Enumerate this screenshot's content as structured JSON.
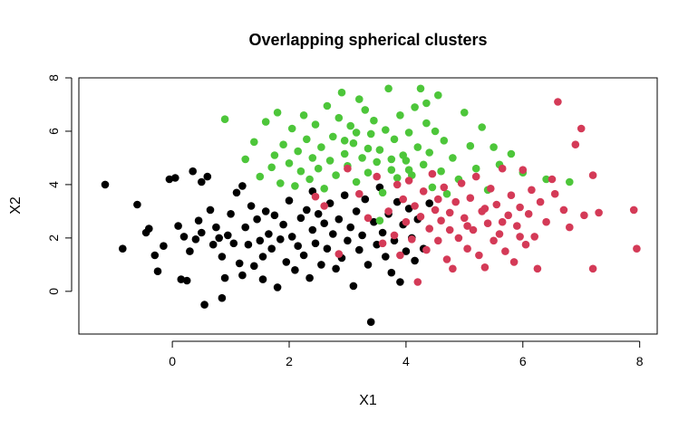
{
  "chart_data": {
    "type": "scatter",
    "title": "Overlapping spherical clusters",
    "xlabel": "X1",
    "ylabel": "X2",
    "xlim": [
      -1.6,
      8.3
    ],
    "ylim": [
      -1.6,
      8.0
    ],
    "xticks": [
      0,
      2,
      4,
      6,
      8
    ],
    "yticks": [
      0,
      2,
      4,
      6,
      8
    ],
    "grid": false,
    "legend": "none",
    "series": [
      {
        "color": "#000000",
        "points": [
          [
            -1.15,
            4.0
          ],
          [
            -0.85,
            1.6
          ],
          [
            -0.6,
            3.25
          ],
          [
            -0.45,
            2.2
          ],
          [
            -0.4,
            2.35
          ],
          [
            -0.3,
            1.35
          ],
          [
            -0.25,
            0.75
          ],
          [
            -0.15,
            1.7
          ],
          [
            -0.05,
            4.2
          ],
          [
            0.05,
            4.25
          ],
          [
            0.1,
            2.45
          ],
          [
            0.15,
            0.45
          ],
          [
            0.2,
            2.05
          ],
          [
            0.25,
            0.4
          ],
          [
            0.3,
            1.5
          ],
          [
            0.35,
            4.5
          ],
          [
            0.4,
            1.95
          ],
          [
            0.45,
            2.65
          ],
          [
            0.5,
            2.2
          ],
          [
            0.5,
            4.1
          ],
          [
            0.55,
            -0.5
          ],
          [
            0.6,
            4.3
          ],
          [
            0.65,
            3.05
          ],
          [
            0.7,
            1.75
          ],
          [
            0.75,
            2.4
          ],
          [
            0.8,
            2.0
          ],
          [
            0.85,
            1.3
          ],
          [
            0.85,
            -0.25
          ],
          [
            0.9,
            0.5
          ],
          [
            0.95,
            2.1
          ],
          [
            1.0,
            2.9
          ],
          [
            1.05,
            1.8
          ],
          [
            1.1,
            3.7
          ],
          [
            1.15,
            1.05
          ],
          [
            1.2,
            0.6
          ],
          [
            1.25,
            2.4
          ],
          [
            1.3,
            1.75
          ],
          [
            1.35,
            3.2
          ],
          [
            1.4,
            0.95
          ],
          [
            1.45,
            2.7
          ],
          [
            1.5,
            1.9
          ],
          [
            1.55,
            1.3
          ],
          [
            1.55,
            0.45
          ],
          [
            1.6,
            3.0
          ],
          [
            1.65,
            2.15
          ],
          [
            1.7,
            1.6
          ],
          [
            1.75,
            2.85
          ],
          [
            1.8,
            0.15
          ],
          [
            1.85,
            1.95
          ],
          [
            1.9,
            2.5
          ],
          [
            1.95,
            1.1
          ],
          [
            2.0,
            3.4
          ],
          [
            2.05,
            2.05
          ],
          [
            2.1,
            0.8
          ],
          [
            2.15,
            1.7
          ],
          [
            2.2,
            2.75
          ],
          [
            2.25,
            1.35
          ],
          [
            2.3,
            3.05
          ],
          [
            2.35,
            0.5
          ],
          [
            2.4,
            2.3
          ],
          [
            2.45,
            1.8
          ],
          [
            2.5,
            2.9
          ],
          [
            2.55,
            1.0
          ],
          [
            2.6,
            2.55
          ],
          [
            2.65,
            1.6
          ],
          [
            2.7,
            3.3
          ],
          [
            2.75,
            2.15
          ],
          [
            2.8,
            0.85
          ],
          [
            2.85,
            2.7
          ],
          [
            2.9,
            1.25
          ],
          [
            2.95,
            3.6
          ],
          [
            3.0,
            1.9
          ],
          [
            3.05,
            2.4
          ],
          [
            3.1,
            0.2
          ],
          [
            3.15,
            3.0
          ],
          [
            3.2,
            1.55
          ],
          [
            3.25,
            2.1
          ],
          [
            3.3,
            3.45
          ],
          [
            3.35,
            1.0
          ],
          [
            3.4,
            -1.15
          ],
          [
            3.45,
            2.6
          ],
          [
            3.5,
            1.75
          ],
          [
            3.55,
            3.9
          ],
          [
            3.6,
            2.2
          ],
          [
            3.65,
            1.3
          ],
          [
            3.7,
            2.9
          ],
          [
            3.75,
            0.7
          ],
          [
            3.8,
            1.9
          ],
          [
            3.85,
            3.35
          ],
          [
            3.9,
            0.35
          ],
          [
            3.95,
            2.5
          ],
          [
            4.0,
            1.5
          ],
          [
            4.05,
            3.1
          ],
          [
            4.1,
            2.0
          ],
          [
            4.15,
            1.15
          ],
          [
            4.2,
            2.7
          ],
          [
            4.3,
            1.6
          ],
          [
            4.4,
            3.3
          ],
          [
            1.2,
            3.95
          ],
          [
            2.4,
            3.75
          ]
        ]
      },
      {
        "color": "#4dc63a",
        "points": [
          [
            0.9,
            6.45
          ],
          [
            1.25,
            4.95
          ],
          [
            1.4,
            5.6
          ],
          [
            1.5,
            4.3
          ],
          [
            1.6,
            6.35
          ],
          [
            1.7,
            4.65
          ],
          [
            1.75,
            5.1
          ],
          [
            1.8,
            6.7
          ],
          [
            1.85,
            4.05
          ],
          [
            1.9,
            5.5
          ],
          [
            2.0,
            4.8
          ],
          [
            2.05,
            6.1
          ],
          [
            2.1,
            3.95
          ],
          [
            2.15,
            5.25
          ],
          [
            2.2,
            4.5
          ],
          [
            2.25,
            6.6
          ],
          [
            2.3,
            5.7
          ],
          [
            2.35,
            4.2
          ],
          [
            2.4,
            5.0
          ],
          [
            2.45,
            6.25
          ],
          [
            2.5,
            4.6
          ],
          [
            2.55,
            5.4
          ],
          [
            2.6,
            3.85
          ],
          [
            2.65,
            6.95
          ],
          [
            2.7,
            4.9
          ],
          [
            2.75,
            5.8
          ],
          [
            2.8,
            4.35
          ],
          [
            2.85,
            6.5
          ],
          [
            2.9,
            7.45
          ],
          [
            2.95,
            5.15
          ],
          [
            3.0,
            4.7
          ],
          [
            3.05,
            6.2
          ],
          [
            3.1,
            5.55
          ],
          [
            3.15,
            4.1
          ],
          [
            3.2,
            7.2
          ],
          [
            3.25,
            5.0
          ],
          [
            3.3,
            6.8
          ],
          [
            3.35,
            4.45
          ],
          [
            3.4,
            5.9
          ],
          [
            3.45,
            6.4
          ],
          [
            3.5,
            4.85
          ],
          [
            3.55,
            5.3
          ],
          [
            3.6,
            3.7
          ],
          [
            3.65,
            6.05
          ],
          [
            3.7,
            7.6
          ],
          [
            3.75,
            4.55
          ],
          [
            3.8,
            5.7
          ],
          [
            3.85,
            4.25
          ],
          [
            3.9,
            6.6
          ],
          [
            3.95,
            5.1
          ],
          [
            4.0,
            4.9
          ],
          [
            4.05,
            5.95
          ],
          [
            4.1,
            4.35
          ],
          [
            4.15,
            6.9
          ],
          [
            4.2,
            5.4
          ],
          [
            4.25,
            7.6
          ],
          [
            4.3,
            4.75
          ],
          [
            4.35,
            6.3
          ],
          [
            4.4,
            5.2
          ],
          [
            4.45,
            3.9
          ],
          [
            4.5,
            6.0
          ],
          [
            4.55,
            7.35
          ],
          [
            4.6,
            4.5
          ],
          [
            4.65,
            5.65
          ],
          [
            4.7,
            3.65
          ],
          [
            4.8,
            5.0
          ],
          [
            4.9,
            4.2
          ],
          [
            5.0,
            6.7
          ],
          [
            5.1,
            5.45
          ],
          [
            5.2,
            4.6
          ],
          [
            5.3,
            6.15
          ],
          [
            5.4,
            3.8
          ],
          [
            5.5,
            5.4
          ],
          [
            5.6,
            4.75
          ],
          [
            5.8,
            5.15
          ],
          [
            6.0,
            4.45
          ],
          [
            6.4,
            4.2
          ],
          [
            6.8,
            4.1
          ],
          [
            4.35,
            7.05
          ],
          [
            3.55,
            2.65
          ],
          [
            2.95,
            5.65
          ],
          [
            3.15,
            5.95
          ],
          [
            3.35,
            5.35
          ],
          [
            3.75,
            4.95
          ],
          [
            4.05,
            4.55
          ]
        ]
      },
      {
        "color": "#d43a57",
        "points": [
          [
            2.45,
            3.55
          ],
          [
            2.6,
            3.2
          ],
          [
            2.85,
            1.4
          ],
          [
            3.0,
            4.6
          ],
          [
            3.2,
            3.65
          ],
          [
            3.35,
            2.75
          ],
          [
            3.5,
            4.3
          ],
          [
            3.6,
            1.8
          ],
          [
            3.7,
            3.0
          ],
          [
            3.8,
            2.1
          ],
          [
            3.85,
            4.0
          ],
          [
            3.9,
            1.35
          ],
          [
            3.95,
            3.45
          ],
          [
            4.0,
            2.6
          ],
          [
            4.05,
            4.15
          ],
          [
            4.1,
            1.95
          ],
          [
            4.15,
            3.2
          ],
          [
            4.2,
            0.35
          ],
          [
            4.25,
            2.8
          ],
          [
            4.3,
            3.75
          ],
          [
            4.35,
            1.55
          ],
          [
            4.4,
            2.35
          ],
          [
            4.45,
            4.4
          ],
          [
            4.5,
            3.05
          ],
          [
            4.55,
            1.9
          ],
          [
            4.6,
            2.65
          ],
          [
            4.65,
            3.9
          ],
          [
            4.7,
            1.2
          ],
          [
            4.75,
            2.3
          ],
          [
            4.8,
            0.85
          ],
          [
            4.85,
            3.35
          ],
          [
            4.9,
            2.0
          ],
          [
            4.95,
            4.05
          ],
          [
            5.0,
            2.75
          ],
          [
            5.05,
            1.6
          ],
          [
            5.1,
            3.5
          ],
          [
            5.15,
            2.3
          ],
          [
            5.2,
            4.3
          ],
          [
            5.25,
            1.35
          ],
          [
            5.3,
            3.0
          ],
          [
            5.35,
            0.9
          ],
          [
            5.4,
            2.55
          ],
          [
            5.45,
            3.85
          ],
          [
            5.5,
            1.9
          ],
          [
            5.55,
            3.25
          ],
          [
            5.6,
            2.15
          ],
          [
            5.65,
            4.6
          ],
          [
            5.7,
            1.5
          ],
          [
            5.75,
            2.85
          ],
          [
            5.8,
            3.6
          ],
          [
            5.85,
            1.1
          ],
          [
            5.9,
            2.45
          ],
          [
            5.95,
            3.15
          ],
          [
            6.0,
            4.55
          ],
          [
            6.05,
            1.75
          ],
          [
            6.1,
            2.9
          ],
          [
            6.15,
            3.8
          ],
          [
            6.2,
            2.05
          ],
          [
            6.25,
            0.85
          ],
          [
            6.3,
            3.35
          ],
          [
            6.4,
            2.6
          ],
          [
            6.5,
            4.2
          ],
          [
            6.6,
            7.1
          ],
          [
            6.7,
            3.05
          ],
          [
            6.8,
            2.4
          ],
          [
            6.9,
            5.5
          ],
          [
            7.0,
            6.1
          ],
          [
            7.05,
            2.85
          ],
          [
            7.2,
            4.35
          ],
          [
            7.2,
            0.85
          ],
          [
            7.3,
            2.95
          ],
          [
            7.9,
            3.05
          ],
          [
            7.95,
            1.6
          ],
          [
            4.55,
            3.45
          ],
          [
            4.75,
            2.95
          ],
          [
            5.05,
            2.45
          ],
          [
            5.35,
            3.1
          ],
          [
            5.65,
            2.6
          ],
          [
            5.95,
            2.05
          ],
          [
            6.55,
            3.65
          ]
        ]
      }
    ]
  }
}
